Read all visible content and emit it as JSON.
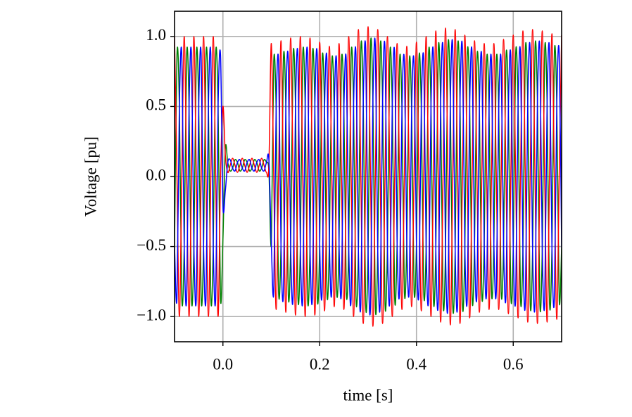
{
  "chart_data": {
    "type": "line",
    "x_label": "time [s]",
    "y_label": "Voltage [pu]",
    "xlim": [
      -0.1,
      0.7
    ],
    "ylim": [
      -1.18,
      1.18
    ],
    "xticks": [
      {
        "value": 0,
        "label": "0.0"
      },
      0.2,
      0.4,
      0.6
    ],
    "yticks": [
      {
        "value": -1,
        "label": "−1.0"
      },
      {
        "value": -0.5,
        "label": "−0.5"
      },
      {
        "value": 0,
        "label": "0.0"
      },
      0.5,
      {
        "value": 1,
        "label": "1.0"
      }
    ],
    "grid": true,
    "x": [
      -0.1,
      -0.095,
      -0.09,
      -0.085,
      -0.08,
      -0.075,
      -0.07,
      -0.065,
      -0.06,
      -0.055,
      -0.05,
      -0.045,
      -0.04,
      -0.035,
      -0.03,
      -0.025,
      -0.02,
      -0.015,
      -0.01,
      -0.005,
      0,
      0.005,
      0.01,
      0.015,
      0.02,
      0.025,
      0.03,
      0.035,
      0.04,
      0.045,
      0.05,
      0.055,
      0.06,
      0.065,
      0.07,
      0.075,
      0.08,
      0.085,
      0.09,
      0.095,
      0.1,
      0.105,
      0.11,
      0.115,
      0.12,
      0.125,
      0.13,
      0.135,
      0.14,
      0.145,
      0.15,
      0.155,
      0.16,
      0.165,
      0.17,
      0.175,
      0.18,
      0.185,
      0.19,
      0.195,
      0.2,
      0.205,
      0.21,
      0.215,
      0.22,
      0.225,
      0.23,
      0.235,
      0.24,
      0.245,
      0.25,
      0.255,
      0.26,
      0.265,
      0.27,
      0.275,
      0.28,
      0.285,
      0.29,
      0.295,
      0.3,
      0.305,
      0.31,
      0.315,
      0.32,
      0.325,
      0.33,
      0.335,
      0.34,
      0.345,
      0.35,
      0.355,
      0.36,
      0.365,
      0.37,
      0.375,
      0.38,
      0.385,
      0.39,
      0.395,
      0.4,
      0.405,
      0.41,
      0.415,
      0.42,
      0.425,
      0.43,
      0.435,
      0.44,
      0.445,
      0.45,
      0.455,
      0.46,
      0.465,
      0.47,
      0.475,
      0.48,
      0.485,
      0.49,
      0.495,
      0.5,
      0.505,
      0.51,
      0.515,
      0.52,
      0.525,
      0.53,
      0.535,
      0.54,
      0.545,
      0.55,
      0.555,
      0.56,
      0.565,
      0.57,
      0.575,
      0.58,
      0.585,
      0.59,
      0.595,
      0.6,
      0.605,
      0.61,
      0.615,
      0.62,
      0.625,
      0.63,
      0.635,
      0.64,
      0.645,
      0.65,
      0.655,
      0.66,
      0.665,
      0.67,
      0.675,
      0.68,
      0.685,
      0.69,
      0.695,
      0.7
    ],
    "series": [
      {
        "color": "#008000",
        "values": [
          -0.5,
          0.87,
          0.5,
          -0.87,
          -0.5,
          0.87,
          0.5,
          -0.87,
          -0.5,
          0.87,
          0.5,
          -0.87,
          -0.5,
          0.87,
          0.5,
          -0.87,
          -0.5,
          0.87,
          0.5,
          -0.87,
          -0.45,
          0.2,
          0.1,
          0.04,
          0.06,
          0.12,
          0.1,
          0.04,
          0.06,
          0.12,
          0.1,
          0.04,
          0.06,
          0.12,
          0.1,
          0.04,
          0.06,
          0.12,
          0.1,
          0.04,
          -0.48,
          0.82,
          0.48,
          -0.82,
          -0.49,
          0.84,
          0.49,
          -0.84,
          -0.5,
          0.86,
          0.5,
          -0.86,
          -0.5,
          0.87,
          0.5,
          -0.87,
          -0.5,
          0.86,
          0.5,
          -0.86,
          -0.48,
          0.83,
          0.48,
          -0.83,
          -0.47,
          0.81,
          0.47,
          -0.81,
          -0.48,
          0.82,
          0.48,
          -0.82,
          -0.5,
          0.87,
          0.5,
          -0.87,
          -0.53,
          0.91,
          0.53,
          -0.91,
          -0.54,
          0.93,
          0.54,
          -0.93,
          -0.53,
          0.91,
          0.53,
          -0.91,
          -0.5,
          0.87,
          0.5,
          -0.87,
          -0.48,
          0.82,
          0.48,
          -0.82,
          -0.47,
          0.81,
          0.47,
          -0.81,
          -0.48,
          0.83,
          0.48,
          -0.83,
          -0.5,
          0.87,
          0.5,
          -0.87,
          -0.52,
          0.9,
          0.52,
          -0.9,
          -0.53,
          0.92,
          0.53,
          -0.92,
          -0.53,
          0.91,
          0.53,
          -0.91,
          -0.51,
          0.87,
          0.51,
          -0.87,
          -0.49,
          0.84,
          0.49,
          -0.84,
          -0.48,
          0.82,
          0.48,
          -0.82,
          -0.48,
          0.82,
          0.48,
          -0.82,
          -0.49,
          0.85,
          0.49,
          -0.85,
          -0.51,
          0.87,
          0.51,
          -0.87,
          -0.52,
          0.9,
          0.52,
          -0.9,
          -0.53,
          0.91,
          0.53,
          -0.91,
          -0.52,
          0.9,
          0.52,
          -0.9,
          -0.51,
          0.88,
          0.51,
          -0.88,
          -0.51
        ]
      },
      {
        "color": "#ff0000",
        "values": [
          1,
          0,
          -1,
          0,
          1,
          0,
          -1,
          0,
          1,
          0,
          -1,
          0,
          1,
          0,
          -1,
          0,
          1,
          0,
          -1,
          0,
          0.5,
          0.15,
          0.03,
          0.08,
          0.13,
          0.08,
          0.03,
          0.08,
          0.13,
          0.08,
          0.03,
          0.08,
          0.13,
          0.08,
          0.03,
          0.08,
          0.13,
          0.08,
          0.03,
          0.08,
          0.95,
          0,
          -0.95,
          0,
          0.97,
          0,
          -0.97,
          0,
          0.99,
          0,
          -0.99,
          0,
          1,
          0,
          -1,
          0,
          0.99,
          0,
          -0.99,
          0,
          0.96,
          0,
          -0.96,
          0,
          0.93,
          0,
          -0.93,
          0,
          0.95,
          0,
          -0.95,
          0,
          1,
          0,
          -1,
          0,
          1.05,
          0,
          -1.05,
          0,
          1.07,
          0,
          -1.07,
          0,
          1.05,
          0,
          -1.05,
          0,
          1,
          0,
          -1,
          0,
          0.95,
          0,
          -0.95,
          0,
          0.93,
          0,
          -0.93,
          0,
          0.96,
          0,
          -0.96,
          0,
          1,
          0,
          -1,
          0,
          1.04,
          0,
          -1.04,
          0,
          1.06,
          0,
          -1.06,
          0,
          1.05,
          0,
          -1.05,
          0,
          1.01,
          0,
          -1.01,
          0,
          0.97,
          0,
          -0.97,
          0,
          0.95,
          0,
          -0.95,
          0,
          0.95,
          0,
          -0.95,
          0,
          0.98,
          0,
          -0.98,
          0,
          1.01,
          0,
          -1.01,
          0,
          1.04,
          0,
          -1.04,
          0,
          1.05,
          0,
          -1.05,
          0,
          1.04,
          0,
          -1.04,
          0,
          1.02,
          0,
          -1.02,
          0,
          1.01
        ]
      },
      {
        "color": "#0000ff",
        "values": [
          -0.5,
          -0.87,
          0.5,
          0.87,
          -0.5,
          -0.87,
          0.5,
          0.87,
          -0.5,
          -0.87,
          0.5,
          0.87,
          -0.5,
          -0.87,
          0.5,
          0.87,
          -0.5,
          -0.87,
          0.5,
          0.87,
          -0.2,
          -0.1,
          0.1,
          0.12,
          0.06,
          0.04,
          0.1,
          0.12,
          0.06,
          0.04,
          0.1,
          0.12,
          0.06,
          0.04,
          0.1,
          0.12,
          0.06,
          0.04,
          0.1,
          0.12,
          -0.48,
          -0.82,
          0.48,
          0.82,
          -0.49,
          -0.84,
          0.49,
          0.84,
          -0.5,
          -0.86,
          0.5,
          0.86,
          -0.5,
          -0.87,
          0.5,
          0.87,
          -0.5,
          -0.86,
          0.5,
          0.86,
          -0.48,
          -0.83,
          0.48,
          0.83,
          -0.47,
          -0.81,
          0.47,
          0.81,
          -0.48,
          -0.82,
          0.48,
          0.82,
          -0.5,
          -0.87,
          0.5,
          0.87,
          -0.53,
          -0.91,
          0.53,
          0.91,
          -0.54,
          -0.93,
          0.54,
          0.93,
          -0.53,
          -0.91,
          0.53,
          0.91,
          -0.5,
          -0.87,
          0.5,
          0.87,
          -0.48,
          -0.82,
          0.48,
          0.82,
          -0.47,
          -0.81,
          0.47,
          0.81,
          -0.48,
          -0.83,
          0.48,
          0.83,
          -0.5,
          -0.87,
          0.5,
          0.87,
          -0.52,
          -0.9,
          0.52,
          0.9,
          -0.53,
          -0.92,
          0.53,
          0.92,
          -0.53,
          -0.91,
          0.53,
          0.91,
          -0.51,
          -0.87,
          0.51,
          0.87,
          -0.49,
          -0.84,
          0.49,
          0.84,
          -0.48,
          -0.82,
          0.48,
          0.82,
          -0.48,
          -0.82,
          0.48,
          0.82,
          -0.49,
          -0.85,
          0.49,
          0.85,
          -0.51,
          -0.87,
          0.51,
          0.87,
          -0.52,
          -0.9,
          0.52,
          0.9,
          -0.53,
          -0.91,
          0.53,
          0.91,
          -0.52,
          -0.9,
          0.52,
          0.9,
          -0.51,
          -0.88,
          0.51,
          0.88,
          -0.51
        ]
      }
    ]
  }
}
